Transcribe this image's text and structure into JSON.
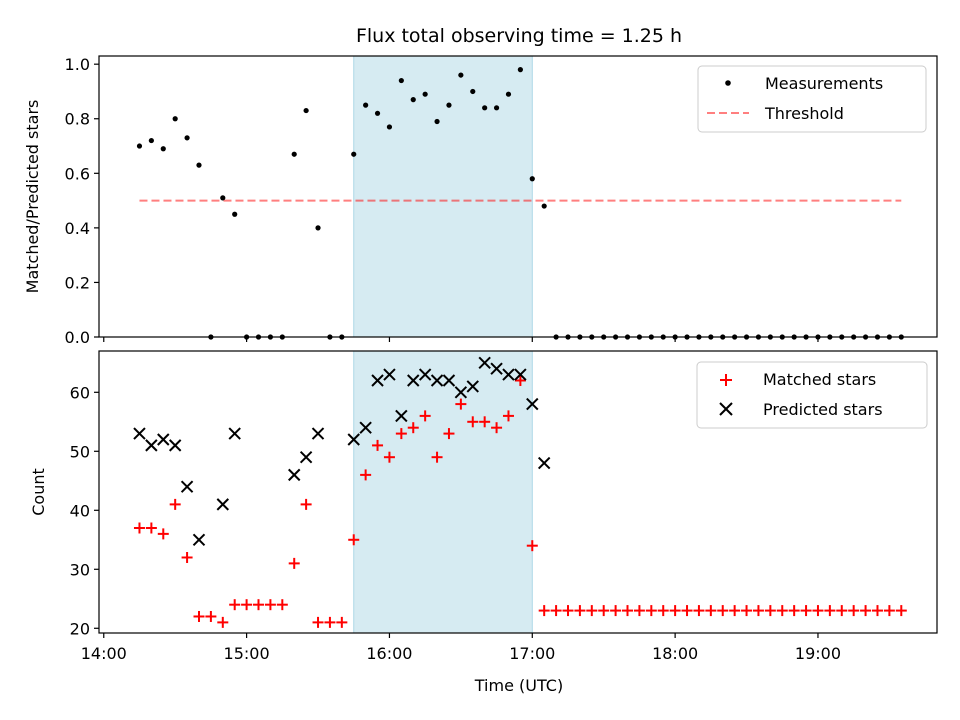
{
  "title": "Flux total observing time = 1.25 h",
  "colors": {
    "shade": "#add8e6",
    "measurement": "#000000",
    "threshold": "#ff0000",
    "matched": "#ff0000",
    "predicted": "#000000"
  },
  "chart_data": [
    {
      "type": "scatter",
      "ylabel": "Matched/Predicted stars",
      "xlim": [
        "13:58",
        "19:50"
      ],
      "ylim": [
        0,
        1.03
      ],
      "yticks": [
        0.0,
        0.2,
        0.4,
        0.6,
        0.8,
        1.0
      ],
      "ytick_labels": [
        "0.0",
        "0.2",
        "0.4",
        "0.6",
        "0.8",
        "1.0"
      ],
      "legend_location": "upper right",
      "shaded_span": [
        "15:45",
        "17:00"
      ],
      "threshold": {
        "name": "Threshold",
        "value": 0.5,
        "x": [
          "14:15",
          "19:35"
        ],
        "style": "dashed"
      },
      "series": [
        {
          "name": "Measurements",
          "marker": "dot",
          "x": [
            "14:15",
            "14:20",
            "14:25",
            "14:30",
            "14:35",
            "14:40",
            "14:45",
            "14:50",
            "14:55",
            "15:00",
            "15:05",
            "15:10",
            "15:15",
            "15:20",
            "15:25",
            "15:30",
            "15:35",
            "15:40",
            "15:45",
            "15:50",
            "15:55",
            "16:00",
            "16:05",
            "16:10",
            "16:15",
            "16:20",
            "16:25",
            "16:30",
            "16:35",
            "16:40",
            "16:45",
            "16:50",
            "16:55",
            "17:00",
            "17:05",
            "17:10",
            "17:15",
            "17:20",
            "17:25",
            "17:30",
            "17:35",
            "17:40",
            "17:45",
            "17:50",
            "17:55",
            "18:00",
            "18:05",
            "18:10",
            "18:15",
            "18:20",
            "18:25",
            "18:30",
            "18:35",
            "18:40",
            "18:45",
            "18:50",
            "18:55",
            "19:00",
            "19:05",
            "19:10",
            "19:15",
            "19:20",
            "19:25",
            "19:30",
            "19:35"
          ],
          "y": [
            0.7,
            0.72,
            0.69,
            0.8,
            0.73,
            0.63,
            0.0,
            0.51,
            0.45,
            0.0,
            0.0,
            0.0,
            0.0,
            0.67,
            0.83,
            0.4,
            0.0,
            0.0,
            0.67,
            0.85,
            0.82,
            0.77,
            0.94,
            0.87,
            0.89,
            0.79,
            0.85,
            0.96,
            0.9,
            0.84,
            0.84,
            0.89,
            0.98,
            0.58,
            0.48,
            0.0,
            0.0,
            0.0,
            0.0,
            0.0,
            0.0,
            0.0,
            0.0,
            0.0,
            0.0,
            0.0,
            0.0,
            0.0,
            0.0,
            0.0,
            0.0,
            0.0,
            0.0,
            0.0,
            0.0,
            0.0,
            0.0,
            0.0,
            0.0,
            0.0,
            0.0,
            0.0,
            0.0,
            0.0,
            0.0
          ]
        }
      ]
    },
    {
      "type": "scatter",
      "ylabel": "Count",
      "xlabel": "Time (UTC)",
      "xlim": [
        "13:58",
        "19:50"
      ],
      "ylim": [
        19.2,
        67
      ],
      "yticks": [
        20,
        30,
        40,
        50,
        60
      ],
      "ytick_labels": [
        "20",
        "30",
        "40",
        "50",
        "60"
      ],
      "xticks": [
        "14:00",
        "15:00",
        "16:00",
        "17:00",
        "18:00",
        "19:00"
      ],
      "legend_location": "upper right",
      "shaded_span": [
        "15:45",
        "17:00"
      ],
      "series": [
        {
          "name": "Matched stars",
          "marker": "plus",
          "x": [
            "14:15",
            "14:20",
            "14:25",
            "14:30",
            "14:35",
            "14:40",
            "14:45",
            "14:50",
            "14:55",
            "15:00",
            "15:05",
            "15:10",
            "15:15",
            "15:20",
            "15:25",
            "15:30",
            "15:35",
            "15:40",
            "15:45",
            "15:50",
            "15:55",
            "16:00",
            "16:05",
            "16:10",
            "16:15",
            "16:20",
            "16:25",
            "16:30",
            "16:35",
            "16:40",
            "16:45",
            "16:50",
            "16:55",
            "17:00",
            "17:05",
            "17:10",
            "17:15",
            "17:20",
            "17:25",
            "17:30",
            "17:35",
            "17:40",
            "17:45",
            "17:50",
            "17:55",
            "18:00",
            "18:05",
            "18:10",
            "18:15",
            "18:20",
            "18:25",
            "18:30",
            "18:35",
            "18:40",
            "18:45",
            "18:50",
            "18:55",
            "19:00",
            "19:05",
            "19:10",
            "19:15",
            "19:20",
            "19:25",
            "19:30",
            "19:35"
          ],
          "y": [
            37,
            37,
            36,
            41,
            32,
            22,
            22,
            21,
            24,
            24,
            24,
            24,
            24,
            31,
            41,
            21,
            21,
            21,
            35,
            46,
            51,
            49,
            53,
            54,
            56,
            49,
            53,
            58,
            55,
            55,
            54,
            56,
            62,
            34,
            23,
            23,
            23,
            23,
            23,
            23,
            23,
            23,
            23,
            23,
            23,
            23,
            23,
            23,
            23,
            23,
            23,
            23,
            23,
            23,
            23,
            23,
            23,
            23,
            23,
            23,
            23,
            23,
            23,
            23,
            23
          ]
        },
        {
          "name": "Predicted stars",
          "marker": "x",
          "x": [
            "14:15",
            "14:20",
            "14:25",
            "14:30",
            "14:35",
            "14:40",
            "14:50",
            "14:55",
            "15:20",
            "15:25",
            "15:30",
            "15:45",
            "15:50",
            "15:55",
            "16:00",
            "16:05",
            "16:10",
            "16:15",
            "16:20",
            "16:25",
            "16:30",
            "16:35",
            "16:40",
            "16:45",
            "16:50",
            "16:55",
            "17:00",
            "17:05"
          ],
          "y": [
            53,
            51,
            52,
            51,
            44,
            35,
            41,
            53,
            46,
            49,
            53,
            52,
            54,
            62,
            63,
            56,
            62,
            63,
            62,
            62,
            60,
            61,
            65,
            64,
            63,
            63,
            58,
            48
          ]
        }
      ]
    }
  ]
}
